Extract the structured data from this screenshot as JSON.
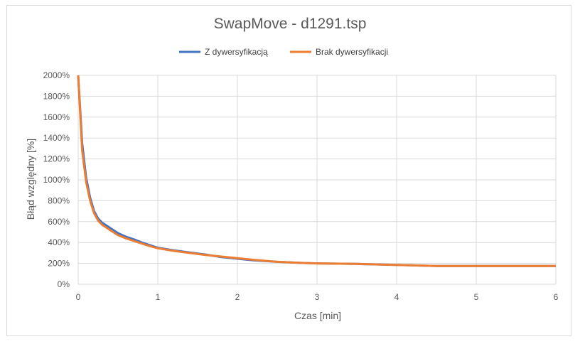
{
  "chart_data": {
    "type": "line",
    "title": "SwapMove - d1291.tsp",
    "xlabel": "Czas [min]",
    "ylabel": "Błąd względny [%]",
    "xlim": [
      0,
      6
    ],
    "ylim": [
      0,
      20
    ],
    "x_ticks": [
      0,
      1,
      2,
      3,
      4,
      5,
      6
    ],
    "x_tick_labels": [
      "0",
      "1",
      "2",
      "3",
      "4",
      "5",
      "6"
    ],
    "y_ticks": [
      0,
      2,
      4,
      6,
      8,
      10,
      12,
      14,
      16,
      18,
      20
    ],
    "y_tick_labels": [
      "0%",
      "200%",
      "400%",
      "600%",
      "800%",
      "1000%",
      "1200%",
      "1400%",
      "1600%",
      "1800%",
      "2000%"
    ],
    "grid": true,
    "legend_position": "top",
    "series": [
      {
        "name": "Z dywersyfikacją",
        "color": "#4472c4",
        "points": [
          [
            0,
            20.0
          ],
          [
            0.05,
            13.5
          ],
          [
            0.1,
            10.2
          ],
          [
            0.15,
            8.3
          ],
          [
            0.2,
            7.0
          ],
          [
            0.25,
            6.3
          ],
          [
            0.3,
            5.9
          ],
          [
            0.4,
            5.4
          ],
          [
            0.5,
            4.9
          ],
          [
            0.6,
            4.55
          ],
          [
            0.7,
            4.3
          ],
          [
            0.8,
            4.0
          ],
          [
            0.9,
            3.75
          ],
          [
            1.0,
            3.5
          ],
          [
            1.2,
            3.25
          ],
          [
            1.4,
            3.05
          ],
          [
            1.6,
            2.85
          ],
          [
            1.8,
            2.6
          ],
          [
            2.0,
            2.45
          ],
          [
            2.2,
            2.3
          ],
          [
            2.5,
            2.15
          ],
          [
            2.8,
            2.05
          ],
          [
            3.0,
            2.0
          ],
          [
            3.5,
            1.95
          ],
          [
            4.0,
            1.85
          ],
          [
            4.5,
            1.75
          ],
          [
            5.0,
            1.75
          ],
          [
            5.5,
            1.75
          ],
          [
            6.0,
            1.75
          ]
        ]
      },
      {
        "name": "Brak dywersyfikacji",
        "color": "#ed7d31",
        "points": [
          [
            0,
            20.0
          ],
          [
            0.05,
            12.8
          ],
          [
            0.1,
            9.8
          ],
          [
            0.15,
            8.0
          ],
          [
            0.2,
            6.8
          ],
          [
            0.25,
            6.1
          ],
          [
            0.3,
            5.7
          ],
          [
            0.4,
            5.2
          ],
          [
            0.5,
            4.7
          ],
          [
            0.6,
            4.4
          ],
          [
            0.7,
            4.15
          ],
          [
            0.8,
            3.9
          ],
          [
            0.9,
            3.65
          ],
          [
            1.0,
            3.45
          ],
          [
            1.2,
            3.2
          ],
          [
            1.4,
            3.0
          ],
          [
            1.6,
            2.8
          ],
          [
            1.8,
            2.65
          ],
          [
            2.0,
            2.5
          ],
          [
            2.2,
            2.35
          ],
          [
            2.5,
            2.15
          ],
          [
            2.8,
            2.05
          ],
          [
            3.0,
            2.0
          ],
          [
            3.5,
            1.95
          ],
          [
            4.0,
            1.85
          ],
          [
            4.5,
            1.75
          ],
          [
            5.0,
            1.75
          ],
          [
            5.5,
            1.75
          ],
          [
            6.0,
            1.75
          ]
        ]
      }
    ]
  }
}
